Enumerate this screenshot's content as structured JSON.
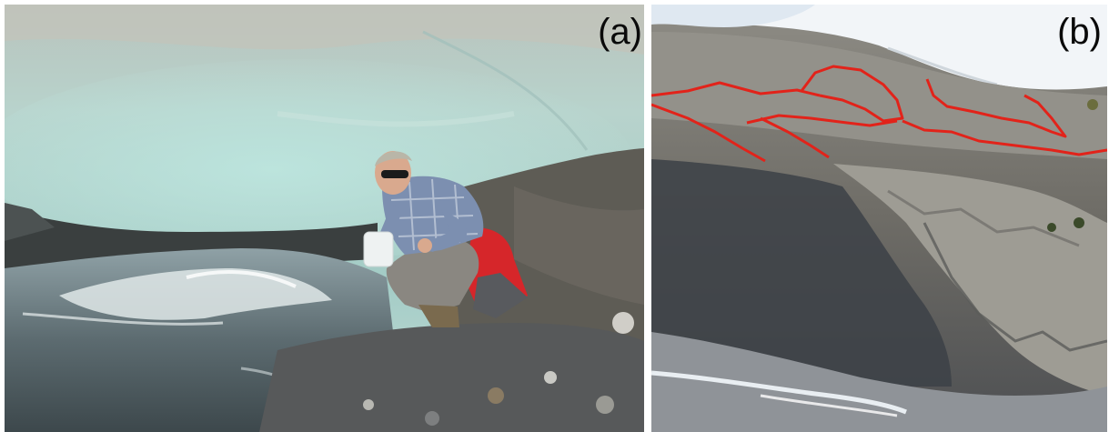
{
  "panels": [
    {
      "label": "(a)"
    },
    {
      "label": "(b)"
    }
  ],
  "colors": {
    "ice": "#a9cfc7",
    "rock": "#5c5c58",
    "water": "#c8d6d8",
    "snow": "#f2f5f8",
    "outline": "#e2231a",
    "shirt": "#7c8fb0",
    "trousers": "#8a8781",
    "jacket_red": "#d6262a"
  }
}
